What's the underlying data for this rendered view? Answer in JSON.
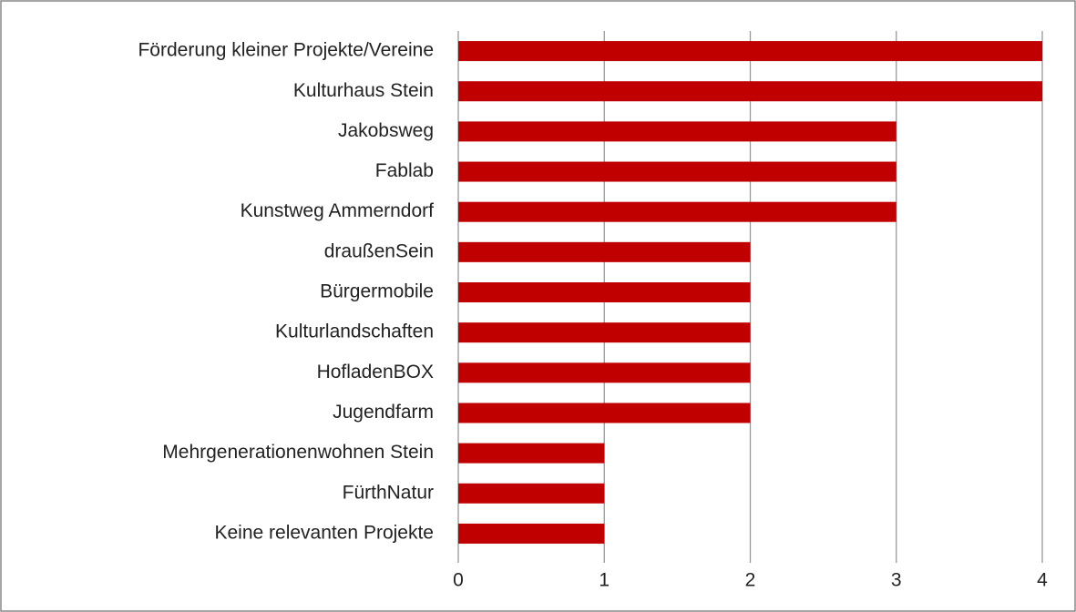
{
  "chart_data": {
    "type": "bar",
    "orientation": "horizontal",
    "categories": [
      "Förderung kleiner Projekte/Vereine",
      "Kulturhaus Stein",
      "Jakobsweg",
      "Fablab",
      "Kunstweg Ammerndorf",
      "draußenSein",
      "Bürgermobile",
      "Kulturlandschaften",
      "HofladenBOX",
      "Jugendfarm",
      "Mehrgenerationenwohnen Stein",
      "FürthNatur",
      "Keine relevanten Projekte"
    ],
    "values": [
      4,
      4,
      3,
      3,
      3,
      2,
      2,
      2,
      2,
      2,
      1,
      1,
      1
    ],
    "color": "#c00000",
    "xlim": [
      0,
      4
    ],
    "xticks": [
      0,
      1,
      2,
      3,
      4
    ],
    "grid": true
  }
}
